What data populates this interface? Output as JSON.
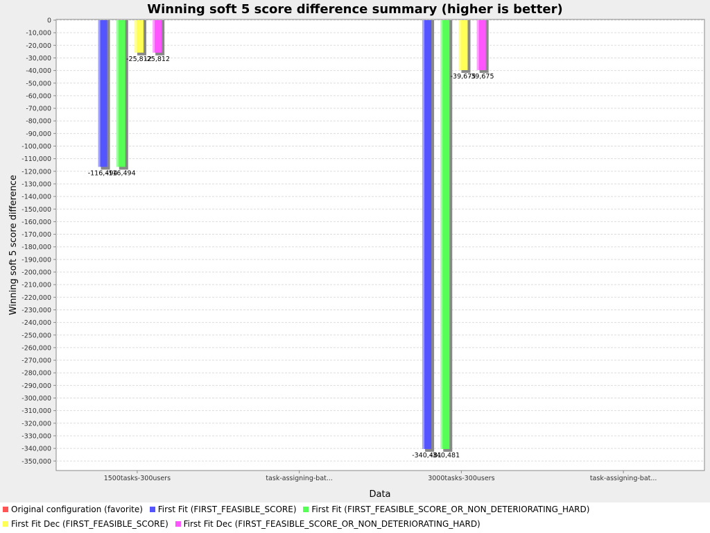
{
  "chart_data": {
    "type": "bar",
    "title": "Winning soft 5 score difference summary (higher is better)",
    "xlabel": "Data",
    "ylabel": "Winning soft 5 score difference",
    "ylim": [
      -355000,
      0
    ],
    "ytick_step": 10000,
    "grid": true,
    "legend_position": "bottom",
    "categories": [
      "1500tasks-300users",
      "task-assigning-bat...",
      "3000tasks-300users",
      "task-assigning-bat..."
    ],
    "series": [
      {
        "name": "Original configuration (favorite)",
        "color": "#ff5555",
        "values": [
          null,
          null,
          null,
          null
        ],
        "labels": [
          "",
          "",
          "",
          ""
        ]
      },
      {
        "name": "First Fit (FIRST_FEASIBLE_SCORE)",
        "color": "#5555ff",
        "values": [
          -116494,
          null,
          -340481,
          null
        ],
        "labels": [
          "-116,494",
          "",
          "-340,481",
          ""
        ]
      },
      {
        "name": "First Fit (FIRST_FEASIBLE_SCORE_OR_NON_DETERIORATING_HARD)",
        "color": "#55ff55",
        "values": [
          -116494,
          null,
          -340481,
          null
        ],
        "labels": [
          "-116,494",
          "",
          "-340,481",
          ""
        ]
      },
      {
        "name": "First Fit Dec (FIRST_FEASIBLE_SCORE)",
        "color": "#ffff55",
        "values": [
          -25812,
          null,
          -39675,
          null
        ],
        "labels": [
          "-25,812",
          "",
          "-39,675",
          ""
        ]
      },
      {
        "name": "First Fit Dec (FIRST_FEASIBLE_SCORE_OR_NON_DETERIORATING_HARD)",
        "color": "#ff55ff",
        "values": [
          -25812,
          null,
          -39675,
          null
        ],
        "labels": [
          "-25,812",
          "",
          "-39,675",
          ""
        ]
      }
    ]
  }
}
